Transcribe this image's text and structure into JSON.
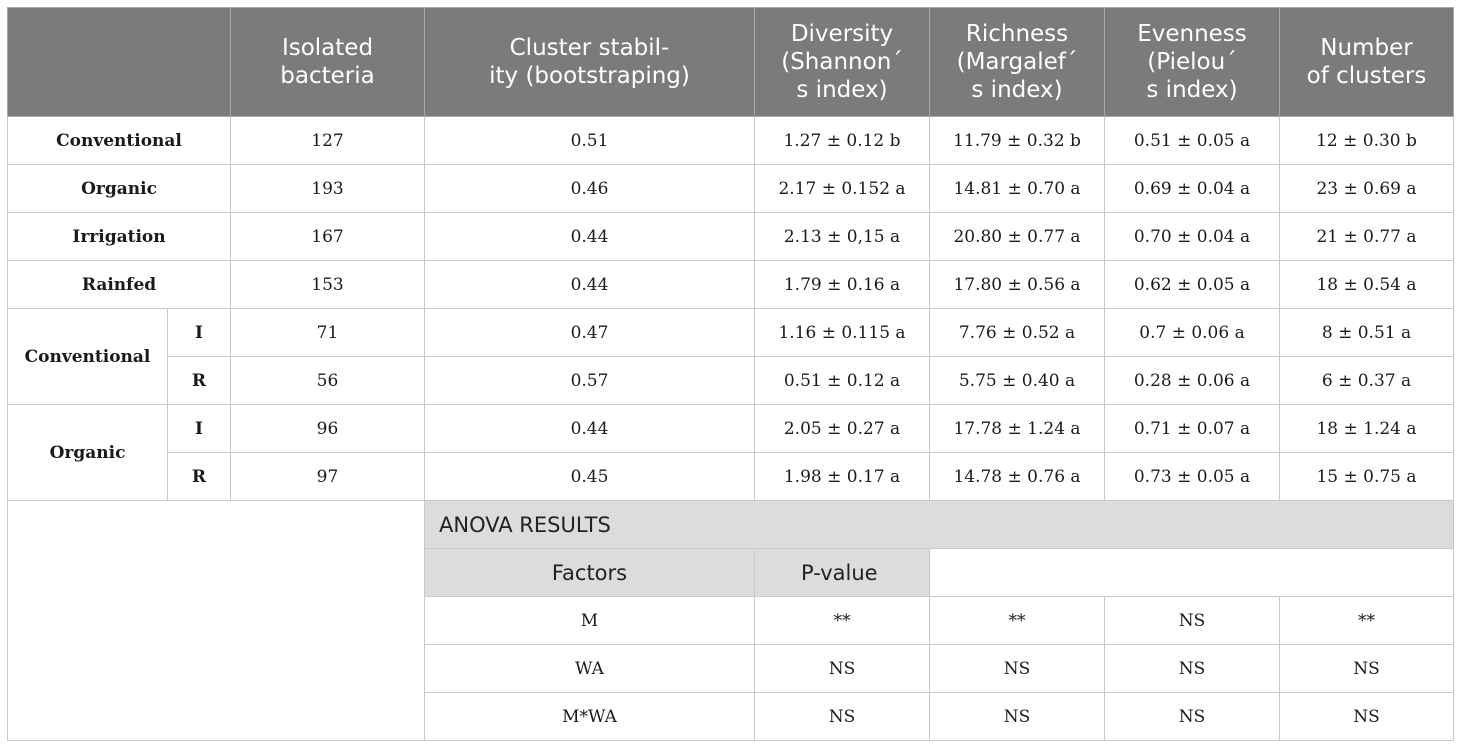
{
  "header": {
    "isolated": "Isolated\nbacteria",
    "stability": "Cluster stabil-\nity (bootstraping)",
    "diversity": "Diversity\n(Shannon´\ns index)",
    "richness": "Richness\n(Margalef´\ns index)",
    "evenness": "Evenness\n(Pielou´\ns index)",
    "clusters": "Number\nof clusters"
  },
  "rows": [
    {
      "label": "Conventional",
      "isolated": "127",
      "stability": "0.51",
      "diversity": "1.27 ± 0.12 b",
      "richness": "11.79 ± 0.32 b",
      "evenness": "0.51 ± 0.05 a",
      "clusters": "12 ± 0.30 b"
    },
    {
      "label": "Organic",
      "isolated": "193",
      "stability": "0.46",
      "diversity": "2.17 ± 0.152 a",
      "richness": "14.81 ± 0.70 a",
      "evenness": "0.69 ± 0.04 a",
      "clusters": "23 ± 0.69 a"
    },
    {
      "label": "Irrigation",
      "isolated": "167",
      "stability": "0.44",
      "diversity": "2.13 ± 0,15 a",
      "richness": "20.80 ± 0.77 a",
      "evenness": "0.70 ± 0.04 a",
      "clusters": "21 ± 0.77 a"
    },
    {
      "label": "Rainfed",
      "isolated": "153",
      "stability": "0.44",
      "diversity": "1.79 ± 0.16 a",
      "richness": "17.80 ± 0.56 a",
      "evenness": "0.62 ± 0.05 a",
      "clusters": "18 ± 0.54 a"
    }
  ],
  "groups": [
    {
      "label": "Conventional",
      "rows": [
        {
          "sub": "I",
          "isolated": "71",
          "stability": "0.47",
          "diversity": "1.16 ± 0.115 a",
          "richness": "7.76 ± 0.52 a",
          "evenness": "0.7 ± 0.06 a",
          "clusters": "8 ± 0.51 a"
        },
        {
          "sub": "R",
          "isolated": "56",
          "stability": "0.57",
          "diversity": "0.51 ± 0.12 a",
          "richness": "5.75 ± 0.40 a",
          "evenness": "0.28 ± 0.06 a",
          "clusters": "6 ± 0.37 a"
        }
      ]
    },
    {
      "label": "Organic",
      "rows": [
        {
          "sub": "I",
          "isolated": "96",
          "stability": "0.44",
          "diversity": "2.05 ± 0.27 a",
          "richness": "17.78 ± 1.24 a",
          "evenness": "0.71 ± 0.07 a",
          "clusters": "18 ± 1.24 a"
        },
        {
          "sub": "R",
          "isolated": "97",
          "stability": "0.45",
          "diversity": "1.98 ± 0.17 a",
          "richness": "14.78 ± 0.76 a",
          "evenness": "0.73 ± 0.05 a",
          "clusters": "15 ± 0.75 a"
        }
      ]
    }
  ],
  "anova": {
    "title": "ANOVA RESULTS",
    "factors_header": "Factors",
    "pvalue_header": "P-value",
    "rows": [
      {
        "factor": "M",
        "diversity": "**",
        "richness": "**",
        "evenness": "NS",
        "clusters": "**"
      },
      {
        "factor": "WA",
        "diversity": "NS",
        "richness": "NS",
        "evenness": "NS",
        "clusters": "NS"
      },
      {
        "factor": "M*WA",
        "diversity": "NS",
        "richness": "NS",
        "evenness": "NS",
        "clusters": "NS"
      }
    ]
  },
  "colors": {
    "header_bg": "#7b7b7b",
    "anova_bg": "#dcdcdc",
    "border": "#c9c9c9"
  }
}
